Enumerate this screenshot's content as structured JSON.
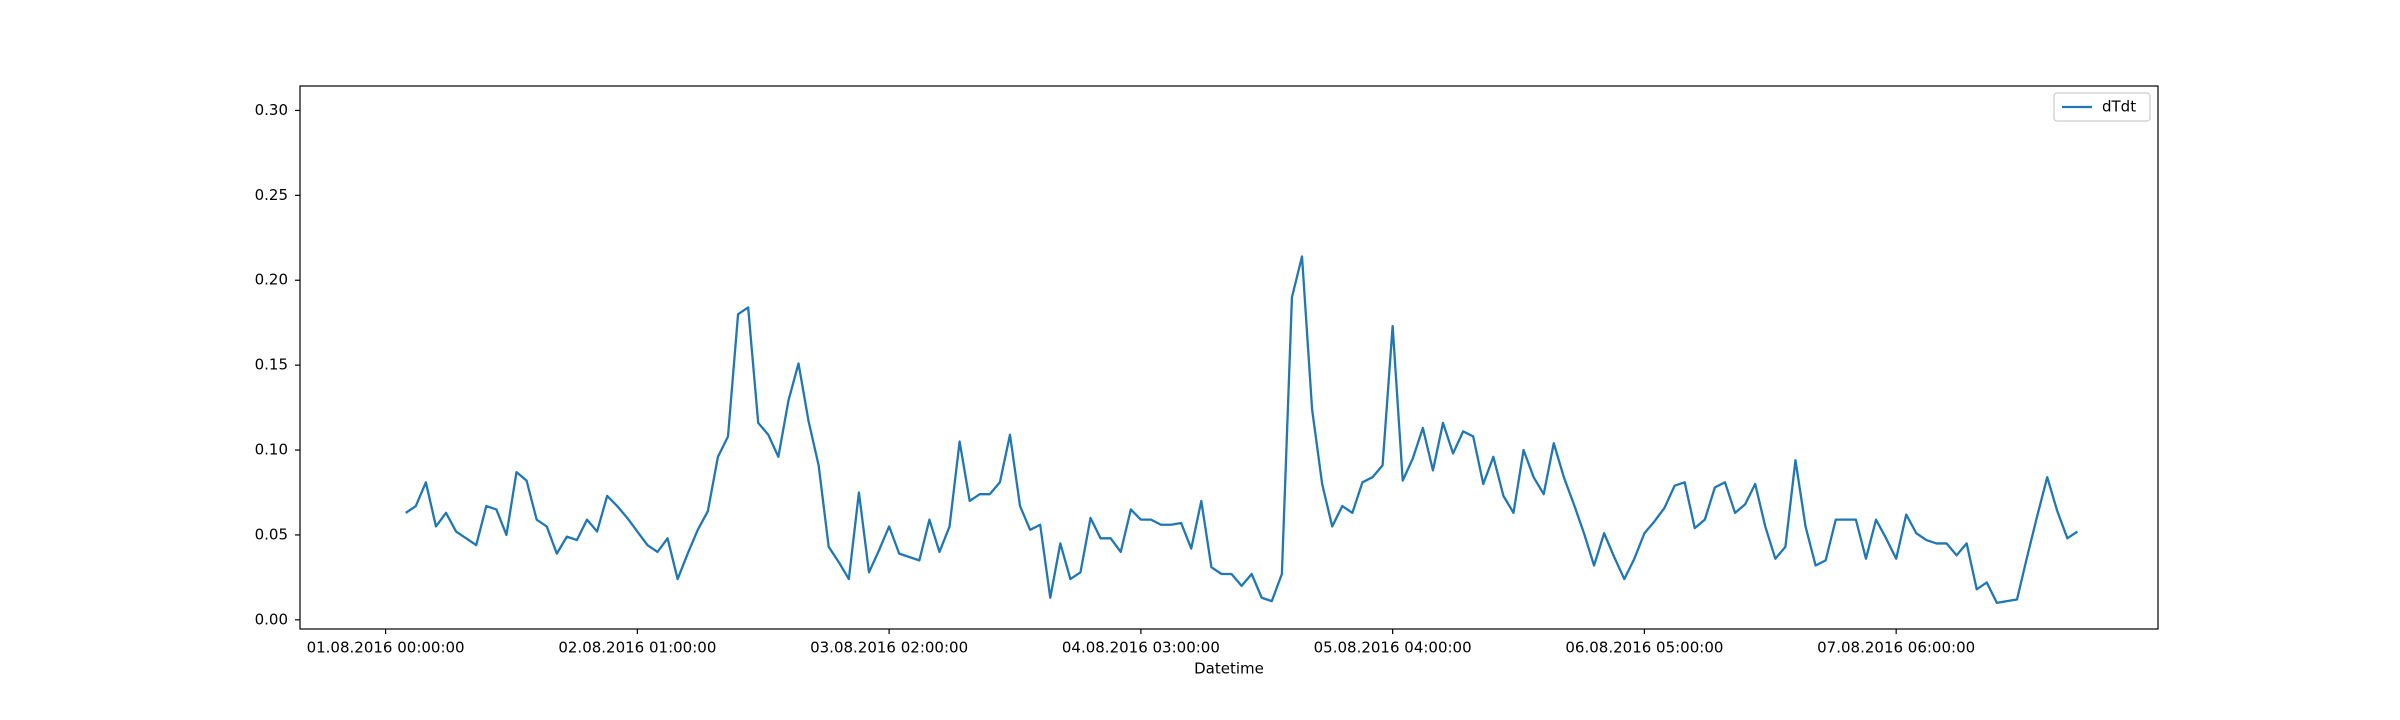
{
  "chart_data": {
    "type": "line",
    "x_label": "Datetime",
    "x": [
      "01.08.2016 02:00:00",
      "01.08.2016 03:00:00",
      "01.08.2016 04:00:00",
      "01.08.2016 05:00:00",
      "01.08.2016 06:00:00",
      "01.08.2016 07:00:00",
      "01.08.2016 08:00:00",
      "01.08.2016 09:00:00",
      "01.08.2016 10:00:00",
      "01.08.2016 11:00:00",
      "01.08.2016 12:00:00",
      "01.08.2016 13:00:00",
      "01.08.2016 14:00:00",
      "01.08.2016 15:00:00",
      "01.08.2016 16:00:00",
      "01.08.2016 17:00:00",
      "01.08.2016 18:00:00",
      "01.08.2016 19:00:00",
      "01.08.2016 20:00:00",
      "01.08.2016 21:00:00",
      "01.08.2016 22:00:00",
      "01.08.2016 23:00:00",
      "02.08.2016 00:00:00",
      "02.08.2016 01:00:00",
      "02.08.2016 02:00:00",
      "02.08.2016 03:00:00",
      "02.08.2016 04:00:00",
      "02.08.2016 05:00:00",
      "02.08.2016 06:00:00",
      "02.08.2016 07:00:00",
      "02.08.2016 08:00:00",
      "02.08.2016 09:00:00",
      "02.08.2016 10:00:00",
      "02.08.2016 11:00:00",
      "02.08.2016 12:00:00",
      "02.08.2016 13:00:00",
      "02.08.2016 14:00:00",
      "02.08.2016 15:00:00",
      "02.08.2016 16:00:00",
      "02.08.2016 17:00:00",
      "02.08.2016 18:00:00",
      "02.08.2016 19:00:00",
      "02.08.2016 20:00:00",
      "02.08.2016 21:00:00",
      "02.08.2016 22:00:00",
      "02.08.2016 23:00:00",
      "03.08.2016 00:00:00",
      "03.08.2016 01:00:00",
      "03.08.2016 02:00:00",
      "03.08.2016 03:00:00",
      "03.08.2016 04:00:00",
      "03.08.2016 05:00:00",
      "03.08.2016 06:00:00",
      "03.08.2016 07:00:00",
      "03.08.2016 08:00:00",
      "03.08.2016 09:00:00",
      "03.08.2016 10:00:00",
      "03.08.2016 11:00:00",
      "03.08.2016 12:00:00",
      "03.08.2016 13:00:00",
      "03.08.2016 14:00:00",
      "03.08.2016 15:00:00",
      "03.08.2016 16:00:00",
      "03.08.2016 17:00:00",
      "03.08.2016 18:00:00",
      "03.08.2016 19:00:00",
      "03.08.2016 20:00:00",
      "03.08.2016 21:00:00",
      "03.08.2016 22:00:00",
      "03.08.2016 23:00:00",
      "04.08.2016 00:00:00",
      "04.08.2016 01:00:00",
      "04.08.2016 02:00:00",
      "04.08.2016 03:00:00",
      "04.08.2016 04:00:00",
      "04.08.2016 05:00:00",
      "04.08.2016 06:00:00",
      "04.08.2016 07:00:00",
      "04.08.2016 08:00:00",
      "04.08.2016 09:00:00",
      "04.08.2016 10:00:00",
      "04.08.2016 11:00:00",
      "04.08.2016 12:00:00",
      "04.08.2016 13:00:00",
      "04.08.2016 14:00:00",
      "04.08.2016 15:00:00",
      "04.08.2016 16:00:00",
      "04.08.2016 17:00:00",
      "04.08.2016 18:00:00",
      "04.08.2016 19:00:00",
      "04.08.2016 20:00:00",
      "04.08.2016 21:00:00",
      "04.08.2016 22:00:00",
      "04.08.2016 23:00:00",
      "05.08.2016 00:00:00",
      "05.08.2016 01:00:00",
      "05.08.2016 02:00:00",
      "05.08.2016 03:00:00",
      "05.08.2016 04:00:00",
      "05.08.2016 05:00:00",
      "05.08.2016 06:00:00",
      "05.08.2016 07:00:00",
      "05.08.2016 08:00:00",
      "05.08.2016 09:00:00",
      "05.08.2016 10:00:00",
      "05.08.2016 11:00:00",
      "05.08.2016 12:00:00",
      "05.08.2016 13:00:00",
      "05.08.2016 14:00:00",
      "05.08.2016 15:00:00",
      "05.08.2016 16:00:00",
      "05.08.2016 17:00:00",
      "05.08.2016 18:00:00",
      "05.08.2016 19:00:00",
      "05.08.2016 20:00:00",
      "05.08.2016 21:00:00",
      "05.08.2016 22:00:00",
      "05.08.2016 23:00:00",
      "06.08.2016 00:00:00",
      "06.08.2016 01:00:00",
      "06.08.2016 02:00:00",
      "06.08.2016 03:00:00",
      "06.08.2016 04:00:00",
      "06.08.2016 05:00:00",
      "06.08.2016 06:00:00",
      "06.08.2016 07:00:00",
      "06.08.2016 08:00:00",
      "06.08.2016 09:00:00",
      "06.08.2016 10:00:00",
      "06.08.2016 11:00:00",
      "06.08.2016 12:00:00",
      "06.08.2016 13:00:00",
      "06.08.2016 14:00:00",
      "06.08.2016 15:00:00",
      "06.08.2016 16:00:00",
      "06.08.2016 17:00:00",
      "06.08.2016 18:00:00",
      "06.08.2016 19:00:00",
      "06.08.2016 20:00:00",
      "06.08.2016 21:00:00",
      "06.08.2016 22:00:00",
      "06.08.2016 23:00:00",
      "07.08.2016 00:00:00",
      "07.08.2016 01:00:00",
      "07.08.2016 02:00:00",
      "07.08.2016 03:00:00",
      "07.08.2016 04:00:00",
      "07.08.2016 05:00:00",
      "07.08.2016 06:00:00",
      "07.08.2016 07:00:00",
      "07.08.2016 08:00:00",
      "07.08.2016 09:00:00",
      "07.08.2016 10:00:00",
      "07.08.2016 11:00:00",
      "07.08.2016 12:00:00",
      "07.08.2016 13:00:00",
      "07.08.2016 14:00:00",
      "07.08.2016 15:00:00",
      "07.08.2016 16:00:00",
      "07.08.2016 17:00:00",
      "07.08.2016 18:00:00",
      "07.08.2016 19:00:00",
      "07.08.2016 20:00:00",
      "07.08.2016 21:00:00",
      "07.08.2016 22:00:00",
      "07.08.2016 23:00:00",
      "08.08.2016 00:00:00"
    ],
    "series": [
      {
        "name": "dTdt",
        "color": "#1f77b4",
        "values": [
          0.063,
          0.067,
          0.081,
          0.055,
          0.063,
          0.052,
          0.048,
          0.044,
          0.067,
          0.065,
          0.05,
          0.087,
          0.082,
          0.059,
          0.055,
          0.039,
          0.049,
          0.047,
          0.059,
          0.052,
          0.073,
          0.067,
          0.06,
          0.052,
          0.044,
          0.04,
          0.048,
          0.024,
          0.039,
          0.053,
          0.064,
          0.096,
          0.108,
          0.18,
          0.184,
          0.116,
          0.109,
          0.096,
          0.129,
          0.151,
          0.117,
          0.091,
          0.043,
          0.034,
          0.024,
          0.075,
          0.028,
          0.041,
          0.055,
          0.039,
          0.037,
          0.035,
          0.059,
          0.04,
          0.055,
          0.105,
          0.07,
          0.074,
          0.074,
          0.081,
          0.109,
          0.067,
          0.053,
          0.056,
          0.013,
          0.045,
          0.024,
          0.028,
          0.06,
          0.048,
          0.048,
          0.04,
          0.065,
          0.059,
          0.059,
          0.056,
          0.056,
          0.057,
          0.042,
          0.07,
          0.031,
          0.027,
          0.027,
          0.02,
          0.027,
          0.013,
          0.011,
          0.027,
          0.19,
          0.214,
          0.124,
          0.08,
          0.055,
          0.067,
          0.063,
          0.081,
          0.084,
          0.091,
          0.173,
          0.082,
          0.095,
          0.113,
          0.088,
          0.116,
          0.098,
          0.111,
          0.108,
          0.08,
          0.096,
          0.073,
          0.063,
          0.1,
          0.084,
          0.074,
          0.104,
          0.084,
          0.068,
          0.051,
          0.032,
          0.051,
          0.037,
          0.024,
          0.036,
          0.051,
          0.058,
          0.066,
          0.079,
          0.081,
          0.054,
          0.059,
          0.078,
          0.081,
          0.063,
          0.068,
          0.08,
          0.055,
          0.036,
          0.043,
          0.094,
          0.055,
          0.032,
          0.035,
          0.059,
          0.059,
          0.059,
          0.036,
          0.059,
          0.048,
          0.036,
          0.062,
          0.051,
          0.047,
          0.045,
          0.045,
          0.038,
          0.045,
          0.018,
          0.022,
          0.01,
          0.011,
          0.012,
          0.037,
          0.061,
          0.084,
          0.064,
          0.048,
          0.052
        ]
      }
    ],
    "xlim": [
      "31.07.2016 15:30:00",
      "08.08.2016 08:00:00"
    ],
    "xticks": [
      "01.08.2016 00:00:00",
      "02.08.2016 01:00:00",
      "03.08.2016 02:00:00",
      "04.08.2016 03:00:00",
      "05.08.2016 04:00:00",
      "06.08.2016 05:00:00",
      "07.08.2016 06:00:00"
    ],
    "ylim": [
      -0.0054,
      0.3144
    ],
    "yticks": [
      {
        "value": 0,
        "label": "0.00"
      },
      {
        "value": 0.05,
        "label": "0.05"
      },
      {
        "value": 0.1,
        "label": "0.10"
      },
      {
        "value": 0.15,
        "label": "0.15"
      },
      {
        "value": 0.2,
        "label": "0.20"
      },
      {
        "value": 0.25,
        "label": "0.25"
      },
      {
        "value": 0.3,
        "label": "0.30"
      }
    ],
    "grid": false,
    "legend": "upper right"
  }
}
